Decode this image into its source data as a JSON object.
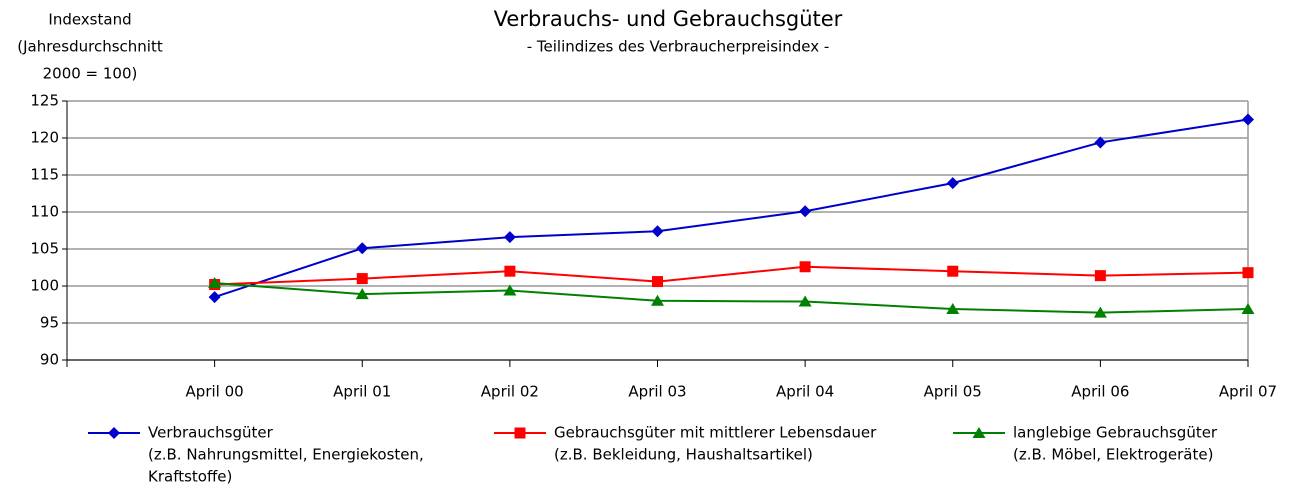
{
  "chart_data": {
    "type": "line",
    "title": "Verbrauchs- und Gebrauchsgüter",
    "subtitle": "- Teilindizes des Verbraucherpreisindex -",
    "y_label": [
      "Indexstand",
      "(Jahresdurchschnitt",
      "2000 = 100)"
    ],
    "categories": [
      null,
      "April 00",
      "April 01",
      "April 02",
      "April 03",
      "April 04",
      "April 05",
      "April 06",
      "April 07"
    ],
    "series": [
      {
        "name": "Verbrauchsgüter",
        "note": [
          "(z.B. Nahrungsmittel, Energiekosten,",
          "Kraftstoffe)"
        ],
        "color": "#0000cc",
        "marker": "diamond",
        "values": [
          null,
          98.5,
          105.1,
          106.6,
          107.4,
          110.1,
          113.9,
          119.4,
          122.5
        ]
      },
      {
        "name": "Gebrauchsgüter mit mittlerer Lebensdauer",
        "note": [
          "(z.B. Bekleidung, Haushaltsartikel)"
        ],
        "color": "#ff0000",
        "marker": "square",
        "values": [
          null,
          100.2,
          101.0,
          102.0,
          100.6,
          102.6,
          102.0,
          101.4,
          101.8
        ]
      },
      {
        "name": "langlebige Gebrauchsgüter",
        "note": [
          "(z.B. Möbel, Elektrogeräte)"
        ],
        "color": "#008000",
        "marker": "triangle",
        "values": [
          null,
          100.4,
          98.9,
          99.4,
          98.0,
          97.9,
          96.9,
          96.4,
          96.9
        ]
      }
    ],
    "ylim": [
      90,
      125
    ],
    "yticks": [
      90,
      95,
      100,
      105,
      110,
      115,
      120,
      125
    ],
    "grid": true
  }
}
